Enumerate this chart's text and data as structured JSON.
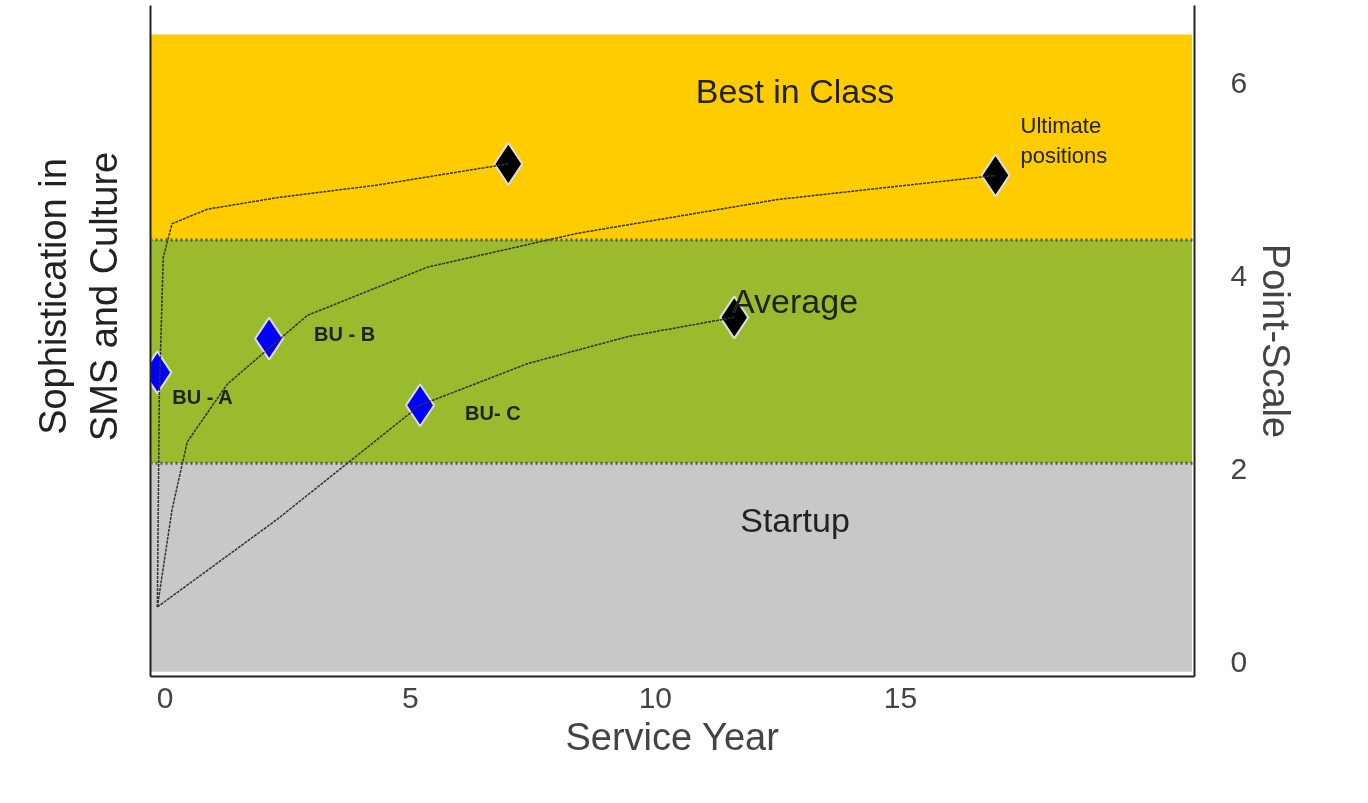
{
  "chart_data": {
    "type": "scatter",
    "xlabel": "Service Year",
    "ylabel": "Point-Scale",
    "xlim": [
      -0.3,
      21
    ],
    "xticks": [
      0,
      5,
      10,
      15
    ],
    "ylim": [
      -0.15,
      6.8
    ],
    "yticks": [
      0,
      2,
      4,
      6
    ],
    "grid": false,
    "bands": [
      {
        "axis": "y",
        "from": -0.1,
        "to": 2.06,
        "label": "Startup",
        "color": "#c8c8c8"
      },
      {
        "axis": "y",
        "from": 2.06,
        "to": 4.37,
        "label": "Average",
        "color": "#9bbb2f"
      },
      {
        "axis": "y",
        "from": 4.37,
        "to": 6.5,
        "label": "Best in Class",
        "color": "#ffcc00"
      }
    ],
    "ref_lines": [
      {
        "axis": "y",
        "value": 2.06,
        "color": "#555555",
        "line_style": "dotted"
      },
      {
        "axis": "y",
        "value": 4.37,
        "color": "#555555",
        "line_style": "dotted"
      }
    ],
    "series": [
      {
        "type": "line",
        "line_style": "dashed",
        "color": "#333333",
        "x": [
          -0.16,
          -0.12,
          -0.04,
          0.14,
          0.86,
          2.29,
          4.33,
          7.0
        ],
        "values": [
          0.57,
          2.78,
          4.19,
          4.54,
          4.69,
          4.81,
          4.94,
          5.16
        ]
      },
      {
        "type": "line",
        "line_style": "dashed",
        "color": "#333333",
        "x": [
          -0.16,
          0.14,
          0.45,
          1.27,
          2.9,
          5.35,
          8.41,
          12.49,
          16.94
        ],
        "values": [
          0.57,
          1.58,
          2.28,
          2.88,
          3.59,
          4.09,
          4.44,
          4.79,
          5.04
        ]
      },
      {
        "type": "line",
        "line_style": "dashed",
        "color": "#333333",
        "x": [
          -0.16,
          2.29,
          5.2,
          7.39,
          9.43,
          11.61
        ],
        "values": [
          0.57,
          1.48,
          2.66,
          3.09,
          3.37,
          3.57
        ]
      },
      {
        "marker": "diamond",
        "color": "#0000ff",
        "x": [
          -0.16,
          2.12,
          5.2
        ],
        "values": [
          3.0,
          3.35,
          2.66
        ]
      },
      {
        "marker": "diamond",
        "color": "#000000",
        "x": [
          7.0,
          16.94,
          11.61
        ],
        "values": [
          5.16,
          5.04,
          3.57
        ]
      }
    ],
    "annotations": [
      "Sophistication in\nSMS and Culture",
      {
        "text": "BU - A",
        "x": -0.16,
        "y": 3.0
      },
      {
        "text": "BU - B",
        "x": 2.12,
        "y": 3.35
      },
      {
        "text": "BU- C",
        "x": 5.2,
        "y": 2.66
      },
      {
        "text": "Ultimate\npositions",
        "x": 16.94,
        "y": 5.04
      }
    ]
  }
}
